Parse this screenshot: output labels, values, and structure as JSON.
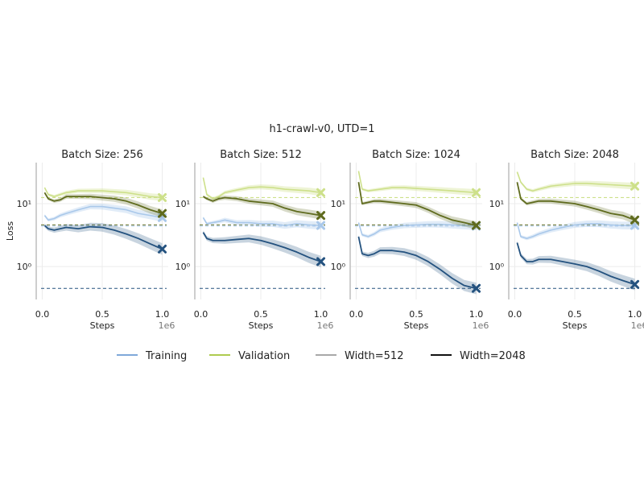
{
  "figure": {
    "suptitle": "h1-crawl-v0, UTD=1",
    "ylabel": "Loss",
    "xlabel": "Steps",
    "x_offset_label": "1e6",
    "legend": [
      {
        "label": "Training",
        "color": "#7fa8d9"
      },
      {
        "label": "Validation",
        "color": "#aecb4f"
      },
      {
        "label": "Width=512",
        "color": "#a8a8a8"
      },
      {
        "label": "Width=2048",
        "color": "#111111"
      }
    ]
  },
  "colors": {
    "train_512": "#a9c8ea",
    "train_2048": "#24527f",
    "val_512": "#cde08a",
    "val_2048": "#5f6b1e"
  },
  "chart_data": [
    {
      "type": "line",
      "title": "Batch Size: 256",
      "xlabel": "Steps",
      "ylabel": "Loss",
      "xlim": [
        -0.05,
        1.05
      ],
      "ylim": [
        0.3,
        45
      ],
      "yscale": "log",
      "xticks": [
        0.0,
        0.5,
        1.0
      ],
      "xtick_labels": [
        "0.0",
        "0.5",
        "1.0"
      ],
      "yticks": [
        1,
        10
      ],
      "ytick_labels": [
        "10⁰",
        "10¹"
      ],
      "grid": true,
      "x": [
        0.02,
        0.05,
        0.1,
        0.15,
        0.2,
        0.3,
        0.4,
        0.5,
        0.6,
        0.7,
        0.8,
        0.9,
        1.0
      ],
      "series": [
        {
          "key": "val_512",
          "values": [
            18,
            14,
            13,
            14,
            15,
            16,
            16,
            16,
            15.5,
            15,
            14,
            13,
            12.5
          ]
        },
        {
          "key": "val_2048",
          "values": [
            15,
            12,
            11,
            11.5,
            13,
            13,
            13,
            12.5,
            12,
            11,
            9.5,
            8,
            7
          ]
        },
        {
          "key": "train_512",
          "values": [
            6.5,
            5.5,
            5.8,
            6.5,
            7,
            8,
            9,
            9,
            8.5,
            8,
            7,
            6.5,
            6
          ]
        },
        {
          "key": "train_2048",
          "values": [
            4.5,
            4.0,
            3.8,
            4.0,
            4.2,
            4.0,
            4.3,
            4.2,
            3.8,
            3.3,
            2.8,
            2.3,
            1.9
          ]
        }
      ],
      "reference_lines": [
        {
          "key": "val_512",
          "y": 12.5
        },
        {
          "key": "val_2048",
          "y": 4.6
        },
        {
          "key": "train_512",
          "y": 4.4
        },
        {
          "key": "train_2048",
          "y": 0.45
        }
      ]
    },
    {
      "type": "line",
      "title": "Batch Size: 512",
      "xlabel": "Steps",
      "ylabel": "",
      "xlim": [
        -0.05,
        1.05
      ],
      "ylim": [
        0.3,
        45
      ],
      "yscale": "log",
      "xticks": [
        0.0,
        0.5,
        1.0
      ],
      "xtick_labels": [
        "0.0",
        "0.5",
        "1.0"
      ],
      "yticks": [
        1,
        10
      ],
      "ytick_labels": [
        "10⁰",
        "10¹"
      ],
      "grid": true,
      "x": [
        0.02,
        0.05,
        0.1,
        0.15,
        0.2,
        0.3,
        0.4,
        0.5,
        0.6,
        0.7,
        0.8,
        0.9,
        1.0
      ],
      "series": [
        {
          "key": "val_512",
          "values": [
            26,
            14,
            12,
            13,
            15,
            16.5,
            18,
            18.5,
            18,
            17,
            16.5,
            16,
            15
          ]
        },
        {
          "key": "val_2048",
          "values": [
            13,
            12,
            11,
            12,
            12.5,
            12,
            11,
            10.5,
            10,
            8.5,
            7.5,
            7,
            6.5
          ]
        },
        {
          "key": "train_512",
          "values": [
            6.0,
            4.8,
            5.0,
            5.2,
            5.5,
            5.0,
            5.0,
            4.8,
            4.8,
            4.5,
            4.8,
            4.6,
            4.5
          ]
        },
        {
          "key": "train_2048",
          "values": [
            3.5,
            2.8,
            2.6,
            2.6,
            2.6,
            2.7,
            2.8,
            2.6,
            2.3,
            2.0,
            1.7,
            1.4,
            1.2
          ]
        }
      ],
      "reference_lines": [
        {
          "key": "val_512",
          "y": 12.5
        },
        {
          "key": "val_2048",
          "y": 4.6
        },
        {
          "key": "train_512",
          "y": 4.4
        },
        {
          "key": "train_2048",
          "y": 0.45
        }
      ]
    },
    {
      "type": "line",
      "title": "Batch Size: 1024",
      "xlabel": "Steps",
      "ylabel": "",
      "xlim": [
        -0.05,
        1.05
      ],
      "ylim": [
        0.3,
        45
      ],
      "yscale": "log",
      "xticks": [
        0.0,
        0.5,
        1.0
      ],
      "xtick_labels": [
        "0.0",
        "0.5",
        "1.0"
      ],
      "yticks": [
        1,
        10
      ],
      "ytick_labels": [
        "10⁰",
        "10¹"
      ],
      "grid": true,
      "x": [
        0.02,
        0.05,
        0.1,
        0.15,
        0.2,
        0.3,
        0.4,
        0.5,
        0.6,
        0.7,
        0.8,
        0.9,
        1.0
      ],
      "series": [
        {
          "key": "val_512",
          "values": [
            33,
            17,
            16,
            16.5,
            17,
            18,
            18,
            17.5,
            17,
            16.5,
            16,
            15.5,
            15
          ]
        },
        {
          "key": "val_2048",
          "values": [
            22,
            10,
            10.5,
            11,
            11,
            10.5,
            10,
            9.5,
            8,
            6.5,
            5.5,
            5,
            4.5
          ]
        },
        {
          "key": "train_512",
          "values": [
            5.0,
            3.2,
            3.0,
            3.3,
            3.8,
            4.2,
            4.5,
            4.6,
            4.7,
            4.7,
            4.6,
            4.5,
            4.4
          ]
        },
        {
          "key": "train_2048",
          "values": [
            3.0,
            1.6,
            1.5,
            1.6,
            1.8,
            1.8,
            1.7,
            1.5,
            1.2,
            0.9,
            0.65,
            0.5,
            0.45
          ]
        }
      ],
      "reference_lines": [
        {
          "key": "val_512",
          "y": 12.5
        },
        {
          "key": "val_2048",
          "y": 4.6
        },
        {
          "key": "train_512",
          "y": 4.4
        },
        {
          "key": "train_2048",
          "y": 0.45
        }
      ]
    },
    {
      "type": "line",
      "title": "Batch Size: 2048",
      "xlabel": "Steps",
      "ylabel": "",
      "xlim": [
        -0.05,
        1.05
      ],
      "ylim": [
        0.3,
        45
      ],
      "yscale": "log",
      "xticks": [
        0.0,
        0.5,
        1.0
      ],
      "xtick_labels": [
        "0.0",
        "0.5",
        "1.0"
      ],
      "yticks": [
        1,
        10
      ],
      "ytick_labels": [
        "10⁰",
        "10¹"
      ],
      "grid": true,
      "x": [
        0.02,
        0.05,
        0.1,
        0.15,
        0.2,
        0.3,
        0.4,
        0.5,
        0.6,
        0.7,
        0.8,
        0.9,
        1.0
      ],
      "series": [
        {
          "key": "val_512",
          "values": [
            32,
            22,
            17,
            16,
            17,
            19,
            20,
            21,
            21,
            20.5,
            20,
            19.5,
            19
          ]
        },
        {
          "key": "val_2048",
          "values": [
            22,
            12,
            10,
            10.5,
            11,
            11,
            10.5,
            10,
            9,
            8,
            7,
            6.5,
            5.5
          ]
        },
        {
          "key": "train_512",
          "values": [
            5.0,
            3.0,
            2.8,
            3.0,
            3.3,
            3.8,
            4.2,
            4.6,
            4.8,
            4.8,
            4.6,
            4.5,
            4.5
          ]
        },
        {
          "key": "train_2048",
          "values": [
            2.4,
            1.5,
            1.2,
            1.2,
            1.3,
            1.3,
            1.2,
            1.1,
            1.0,
            0.85,
            0.7,
            0.6,
            0.52
          ]
        }
      ],
      "reference_lines": [
        {
          "key": "val_512",
          "y": 12.5
        },
        {
          "key": "val_2048",
          "y": 4.6
        },
        {
          "key": "train_512",
          "y": 4.4
        },
        {
          "key": "train_2048",
          "y": 0.45
        }
      ]
    }
  ]
}
